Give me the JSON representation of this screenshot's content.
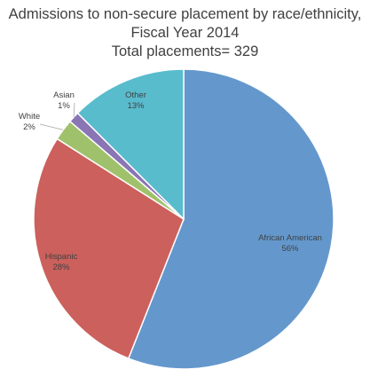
{
  "chart_data": {
    "type": "pie",
    "title_lines": [
      "Admissions to non-secure placement by race/ethnicity,",
      "Fiscal Year 2014",
      "Total placements= 329"
    ],
    "slices": [
      {
        "name": "African American",
        "pct_label": "56%",
        "value": 56,
        "color": "#6498cd"
      },
      {
        "name": "Hispanic",
        "pct_label": "28%",
        "value": 28,
        "color": "#cc605c"
      },
      {
        "name": "White",
        "pct_label": "2%",
        "value": 2.3,
        "color": "#9fc16b"
      },
      {
        "name": "Asian",
        "pct_label": "1%",
        "value": 1.2,
        "color": "#8a75b5"
      },
      {
        "name": "Other",
        "pct_label": "13%",
        "value": 12.5,
        "color": "#58bccd"
      }
    ]
  }
}
